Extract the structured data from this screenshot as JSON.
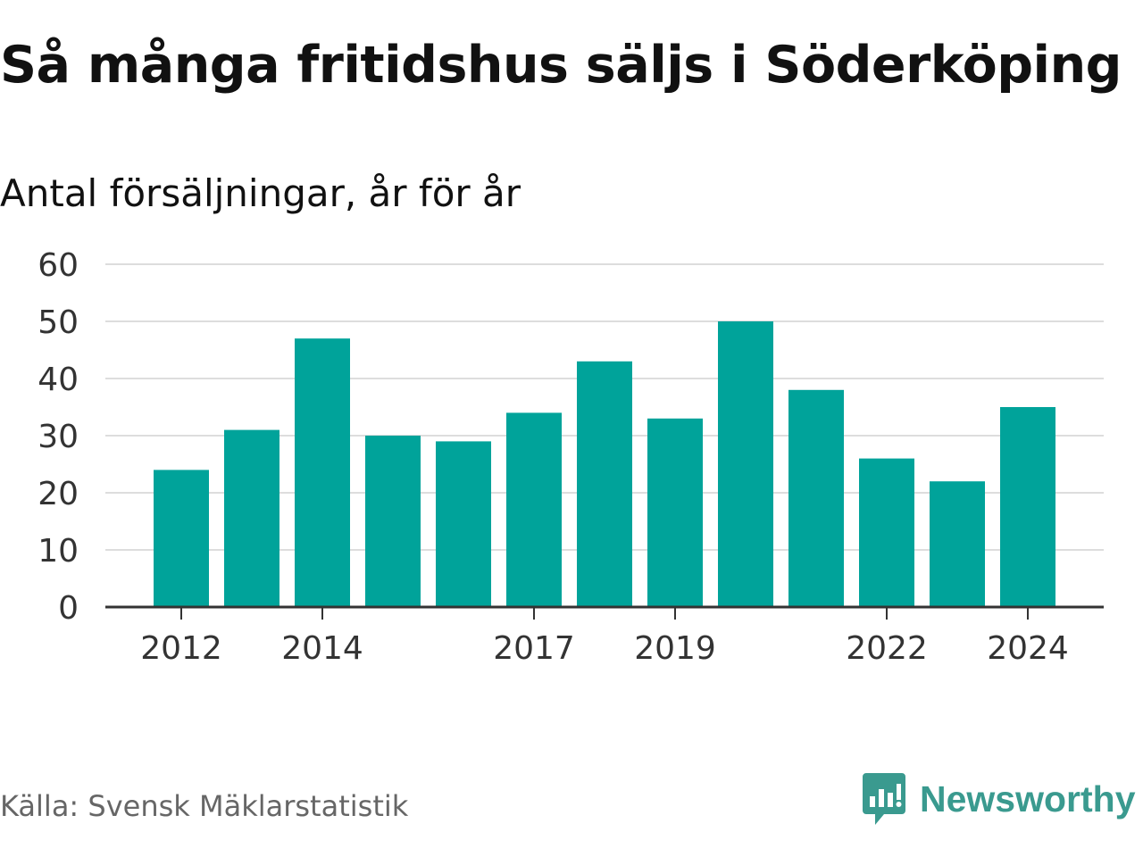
{
  "chart_data": {
    "type": "bar",
    "title": "Så många fritidshus säljs i Söderköping",
    "subtitle": "Antal försäljningar, år för år",
    "categories": [
      "2012",
      "2013",
      "2014",
      "2015",
      "2016",
      "2017",
      "2018",
      "2019",
      "2020",
      "2021",
      "2022",
      "2023",
      "2024"
    ],
    "values": [
      24,
      31,
      47,
      30,
      29,
      34,
      43,
      33,
      50,
      38,
      26,
      22,
      35
    ],
    "x_tick_labels": [
      "2012",
      "2014",
      "2017",
      "2019",
      "2022",
      "2024"
    ],
    "y_ticks": [
      0,
      10,
      20,
      30,
      40,
      50,
      60
    ],
    "ylim": [
      0,
      60
    ],
    "xlabel": "",
    "ylabel": "",
    "grid": true,
    "bar_color": "#00a39a"
  },
  "source": "Källa: Svensk Mäklarstatistik",
  "brand": {
    "name": "Newsworthy",
    "icon": "newsworthy-logo-icon",
    "color": "#3a9a8f"
  }
}
